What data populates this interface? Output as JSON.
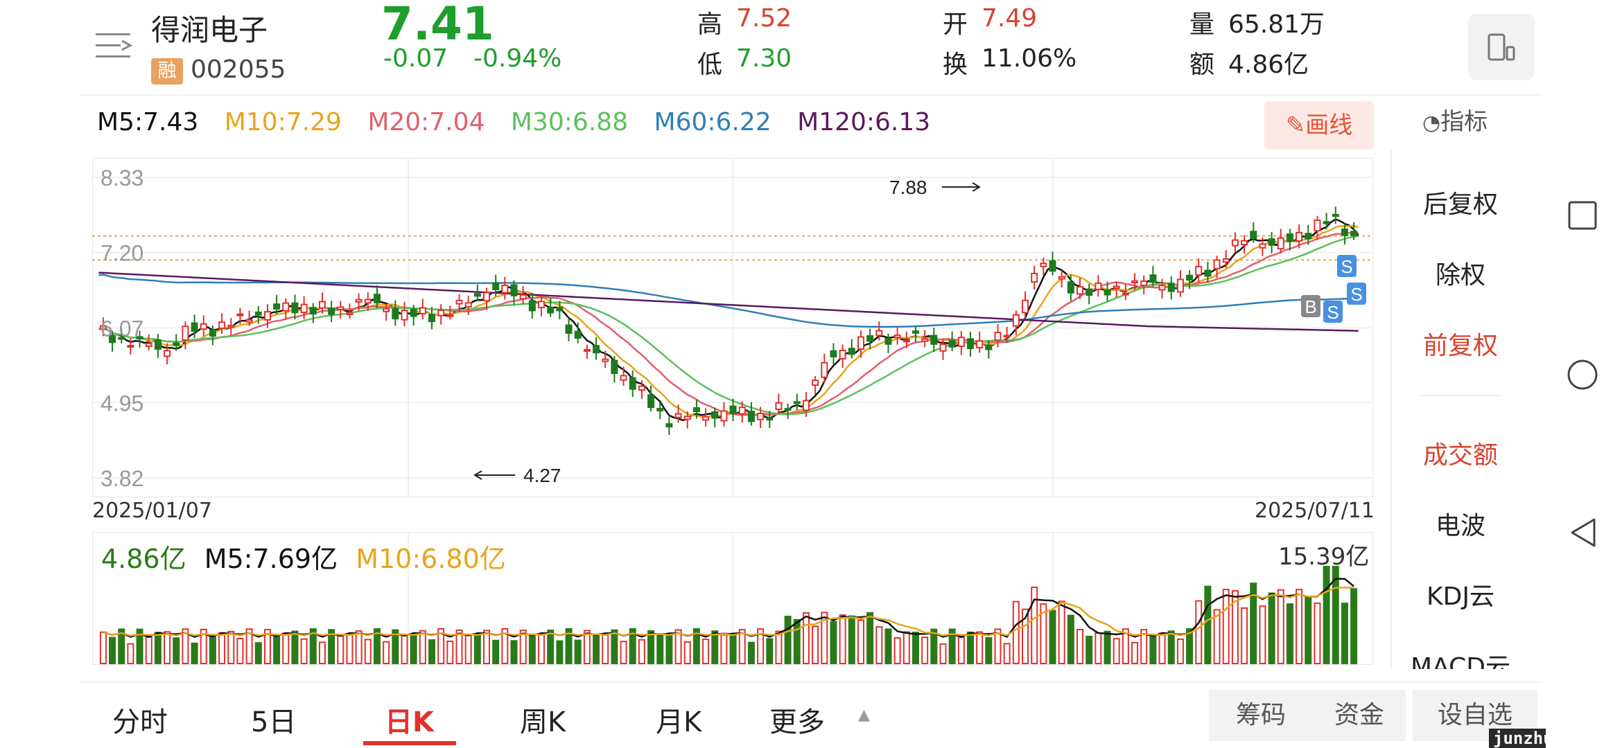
{
  "header": {
    "stock_name": "得润电子",
    "margin_badge": "融",
    "stock_code": "002055",
    "price": "7.41",
    "change": "-0.07",
    "change_pct": "-0.94%",
    "high_label": "高",
    "high": "7.52",
    "low_label": "低",
    "low": "7.30",
    "open_label": "开",
    "open": "7.49",
    "turnover_label": "换",
    "turnover": "11.06%",
    "volume_label": "量",
    "volume": "65.81万",
    "amount_label": "额",
    "amount": "4.86亿"
  },
  "colors": {
    "up": "#e2302b",
    "down": "#1e9e2c",
    "red_price": "#d9432f",
    "ma5": "#111111",
    "ma10": "#e8a41c",
    "ma20": "#e0606e",
    "ma30": "#5cc05c",
    "ma60": "#2f7fb8",
    "ma120": "#5b1a5e"
  },
  "ma_legend": {
    "ma5": "M5:7.43",
    "ma10": "M10:7.29",
    "ma20": "M20:7.04",
    "ma30": "M30:6.88",
    "ma60": "M60:6.22",
    "ma120": "M120:6.13"
  },
  "toolbar": {
    "draw_label": "画线",
    "indicator_label": "指标"
  },
  "chart_data": [
    {
      "type": "candlestick",
      "title": "日K",
      "y_ticks": [
        "8.33",
        "7.20",
        "6.07",
        "4.95",
        "3.82"
      ],
      "ylim": [
        3.82,
        8.33
      ],
      "x_start": "2025/01/07",
      "x_end": "2025/07/11",
      "annotation_high": "7.88",
      "annotation_low": "4.27",
      "markers": [
        "B",
        "S",
        "S",
        "S"
      ],
      "grid": true
    },
    {
      "type": "bar",
      "title": "成交额",
      "legend": {
        "current": "4.86亿",
        "m5": "M5:7.69亿",
        "m10": "M10:6.80亿"
      },
      "max_label": "15.39亿"
    }
  ],
  "right_panel": {
    "items": [
      "后复权",
      "除权",
      "前复权",
      "成交额",
      "电波",
      "KDJ云",
      "MACD云"
    ]
  },
  "tabs": [
    "分时",
    "5日",
    "日K",
    "周K",
    "月K",
    "更多"
  ],
  "bottom_buttons": {
    "chips": "筹码",
    "funds": "资金",
    "add_fav": "设自选"
  },
  "watermark": "junzhuan.com"
}
